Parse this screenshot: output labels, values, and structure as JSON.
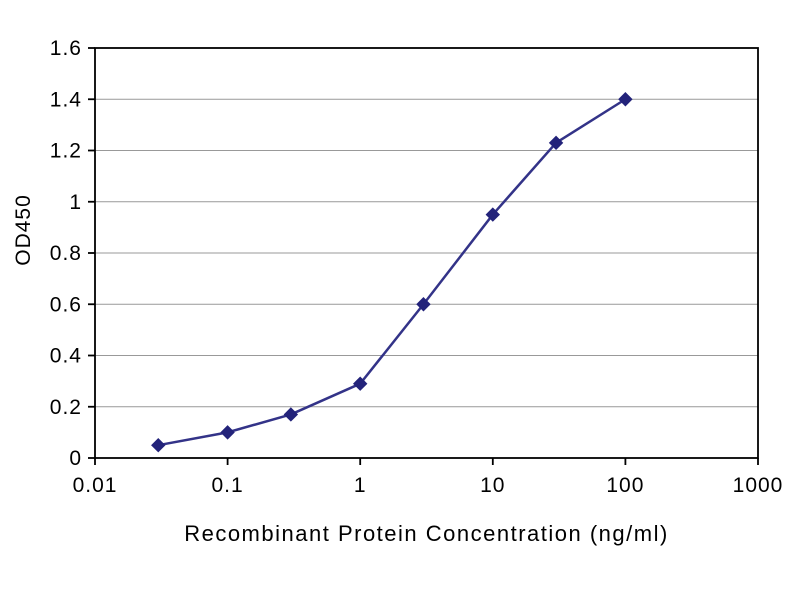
{
  "chart_data": {
    "type": "line",
    "title": "",
    "xlabel": "Recombinant Protein Concentration (ng/ml)",
    "ylabel": "OD450",
    "x_scale": "log",
    "xlim": [
      0.01,
      1000
    ],
    "ylim": [
      0,
      1.6
    ],
    "x": [
      0.03,
      0.1,
      0.3,
      1,
      3,
      10,
      30,
      100
    ],
    "y": [
      0.05,
      0.1,
      0.17,
      0.29,
      0.6,
      0.95,
      1.23,
      1.4
    ],
    "x_ticks": [
      0.01,
      0.1,
      1,
      10,
      100,
      1000
    ],
    "x_tick_labels": [
      "0.01",
      "0.1",
      "1",
      "10",
      "100",
      "1000"
    ],
    "y_ticks": [
      0,
      0.2,
      0.4,
      0.6,
      0.8,
      1,
      1.2,
      1.4,
      1.6
    ],
    "y_tick_labels": [
      "0",
      "0.2",
      "0.4",
      "0.6",
      "0.8",
      "1",
      "1.2",
      "1.4",
      "1.6"
    ],
    "grid": "horizontal",
    "legend": "none",
    "marker": "diamond",
    "line_color": "#333388",
    "marker_color": "#23237a",
    "grid_color": "#999999",
    "axis_color": "#000000",
    "background_color": "#ffffff"
  }
}
